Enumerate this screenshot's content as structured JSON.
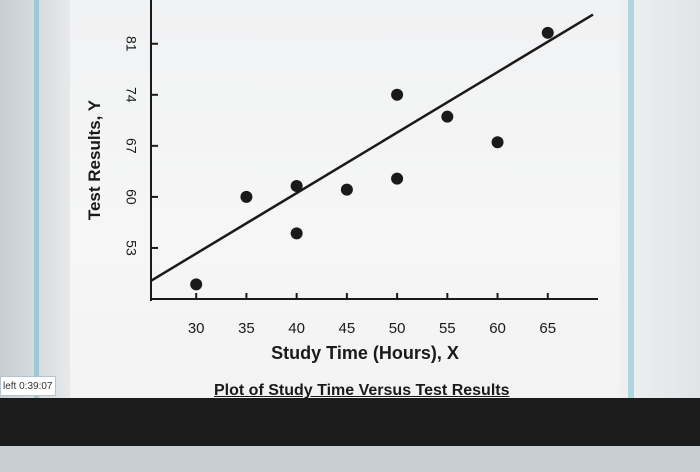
{
  "timer": {
    "text": "left 0:39:07"
  },
  "chart_data": {
    "type": "scatter",
    "title": "",
    "caption": "Plot of Study Time Versus Test Results",
    "xlabel": "Study Time (Hours), X",
    "ylabel": "Test Results, Y",
    "x_ticks": [
      30,
      35,
      40,
      45,
      50,
      55,
      60,
      65
    ],
    "y_ticks": [
      53,
      60,
      67,
      74,
      81
    ],
    "xlim": [
      25.5,
      70
    ],
    "ylim": [
      46,
      87
    ],
    "grid": false,
    "points": [
      {
        "x": 30,
        "y": 48
      },
      {
        "x": 35,
        "y": 60
      },
      {
        "x": 40,
        "y": 61.5
      },
      {
        "x": 40,
        "y": 55
      },
      {
        "x": 45,
        "y": 61
      },
      {
        "x": 50,
        "y": 62.5
      },
      {
        "x": 50,
        "y": 74
      },
      {
        "x": 55,
        "y": 71
      },
      {
        "x": 60,
        "y": 67.5
      },
      {
        "x": 65,
        "y": 82.5
      }
    ],
    "trend_line": {
      "x": [
        25.5,
        69.5
      ],
      "y": [
        48.5,
        85
      ]
    },
    "colors": {
      "marks": "#1a1a1a"
    }
  }
}
